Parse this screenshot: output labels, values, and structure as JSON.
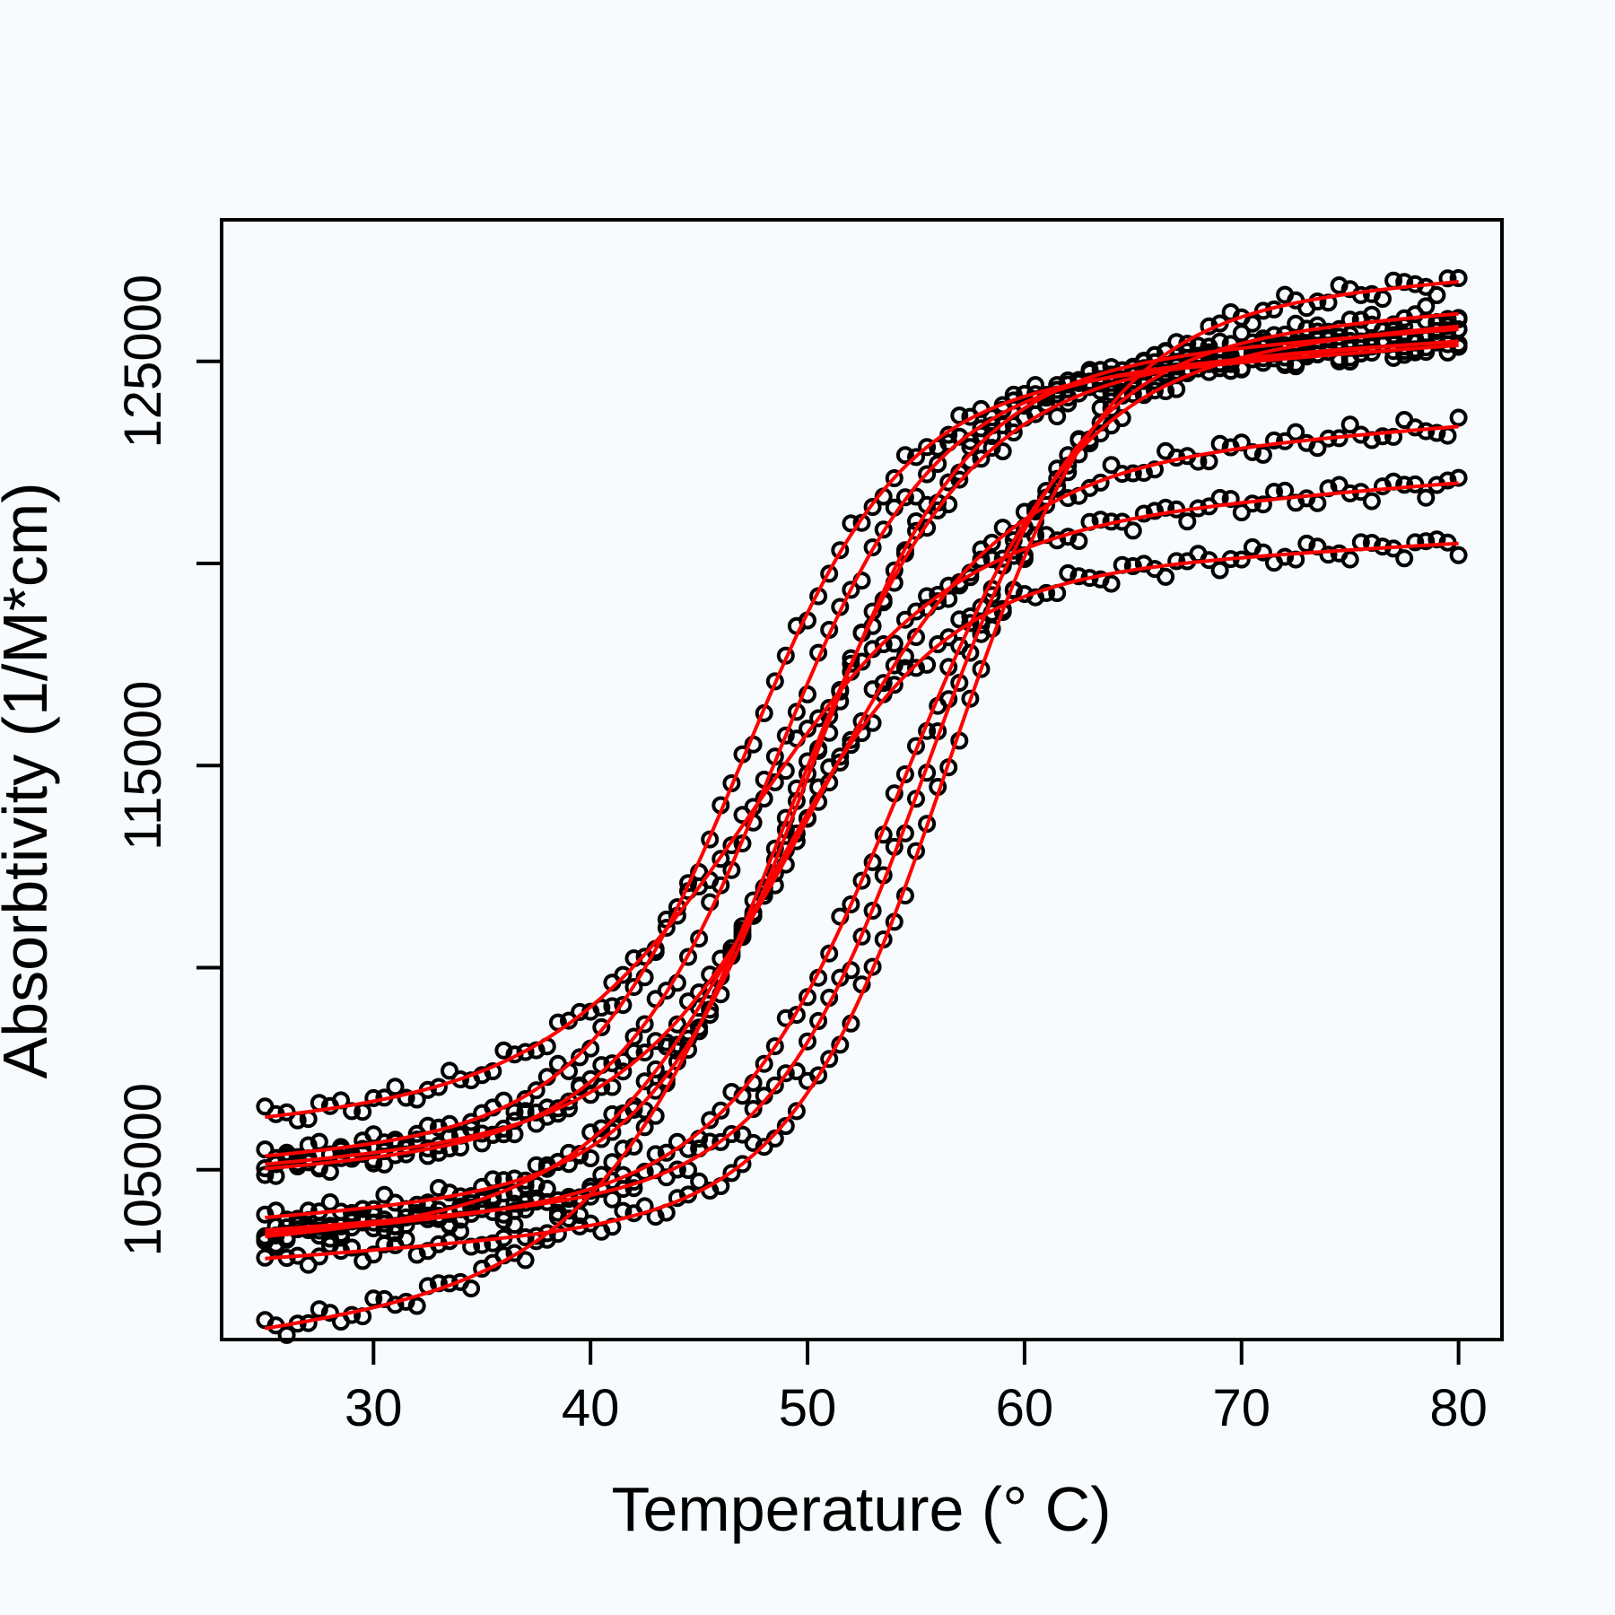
{
  "chart_data": {
    "type": "scatter",
    "title": "",
    "xlabel": "Temperature (° C)",
    "ylabel": "Absorbtivity (1/M*cm)",
    "xlim": [
      23,
      82
    ],
    "ylim": [
      100800,
      128500
    ],
    "xticks": [
      30,
      40,
      50,
      60,
      70,
      80
    ],
    "yticks": [
      105000,
      110000,
      115000,
      120000,
      125000
    ],
    "ytick_labels": [
      "105000",
      "",
      "115000",
      "",
      "125000"
    ],
    "grid": false,
    "x_range_data": [
      25,
      80
    ],
    "x_step": 0.5,
    "colors": {
      "points": "#000000",
      "fit": "#ff0000",
      "background": "#f7fbfd"
    },
    "series": [
      {
        "low": 106200,
        "high": 122000,
        "tm": 47.5,
        "width": 4.6,
        "slope_low": 40,
        "slope_high": 40
      },
      {
        "low": 105300,
        "high": 125400,
        "tm": 47.0,
        "width": 3.6,
        "slope_low": 40,
        "slope_high": 40
      },
      {
        "low": 105000,
        "high": 125500,
        "tm": 48.5,
        "width": 3.6,
        "slope_low": 40,
        "slope_high": 40
      },
      {
        "low": 105100,
        "high": 123400,
        "tm": 50.5,
        "width": 4.2,
        "slope_low": 40,
        "slope_high": 40
      },
      {
        "low": 103800,
        "high": 125800,
        "tm": 50.0,
        "width": 3.6,
        "slope_low": 40,
        "slope_high": 40
      },
      {
        "low": 103400,
        "high": 125900,
        "tm": 54.5,
        "width": 4.0,
        "slope_low": 40,
        "slope_high": 40
      },
      {
        "low": 103500,
        "high": 126200,
        "tm": 55.5,
        "width": 3.6,
        "slope_low": 40,
        "slope_high": 40
      },
      {
        "low": 102800,
        "high": 127000,
        "tm": 56.5,
        "width": 3.6,
        "slope_low": 40,
        "slope_high": 40
      },
      {
        "low": 101000,
        "high": 125500,
        "tm": 49.0,
        "width": 4.2,
        "slope_low": 70,
        "slope_high": 30
      },
      {
        "low": 103300,
        "high": 120500,
        "tm": 48.0,
        "width": 4.0,
        "slope_low": 40,
        "slope_high": 30
      }
    ]
  }
}
